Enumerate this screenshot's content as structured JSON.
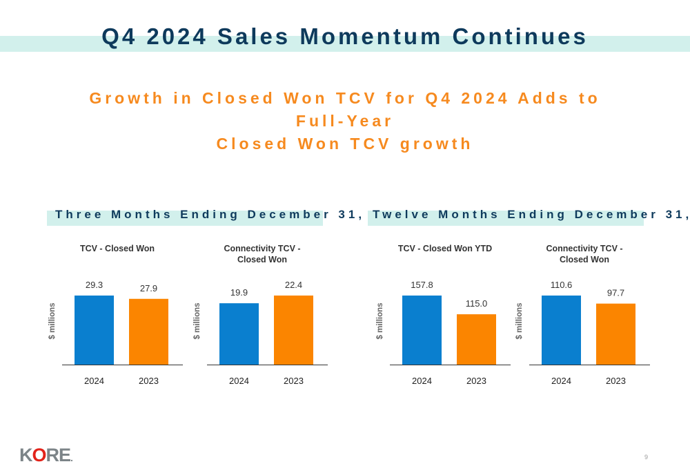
{
  "slide": {
    "title": "Q4 2024 Sales Momentum Continues",
    "subtitle_line1": "Growth in Closed Won TCV for Q4 2024 Adds to Full-Year",
    "subtitle_line2": "Closed Won TCV growth",
    "page_number": "9",
    "logo": {
      "k": "K",
      "o": "O",
      "re": "RE",
      "dot": "."
    }
  },
  "sections": [
    {
      "label": "Three Months Ending December 31,"
    },
    {
      "label": "Twelve Months Ending December 31,"
    }
  ],
  "colors": {
    "y2024": "#0a7fcf",
    "y2023": "#fb8500",
    "title": "#0e3a5c",
    "subtitle": "#f68a1f",
    "band": "#d2f0ec"
  },
  "chart_data": [
    {
      "type": "bar",
      "title_lines": [
        "TCV - Closed Won"
      ],
      "ylabel": "$ millions",
      "categories": [
        "2024",
        "2023"
      ],
      "values": [
        29.3,
        27.9
      ],
      "value_labels": [
        "29.3",
        "27.9"
      ]
    },
    {
      "type": "bar",
      "title_lines": [
        "Connectivity TCV -",
        "Closed Won"
      ],
      "ylabel": "$ millions",
      "categories": [
        "2024",
        "2023"
      ],
      "values": [
        19.9,
        22.4
      ],
      "value_labels": [
        "19.9",
        "22.4"
      ]
    },
    {
      "type": "bar",
      "title_lines": [
        "TCV - Closed Won YTD"
      ],
      "ylabel": "$ millions",
      "categories": [
        "2024",
        "2023"
      ],
      "values": [
        157.8,
        115.0
      ],
      "value_labels": [
        "157.8",
        "115.0"
      ]
    },
    {
      "type": "bar",
      "title_lines": [
        "Connectivity TCV -",
        "Closed Won"
      ],
      "ylabel": "$ millions",
      "categories": [
        "2024",
        "2023"
      ],
      "values": [
        110.6,
        97.7
      ],
      "value_labels": [
        "110.6",
        "97.7"
      ]
    }
  ]
}
